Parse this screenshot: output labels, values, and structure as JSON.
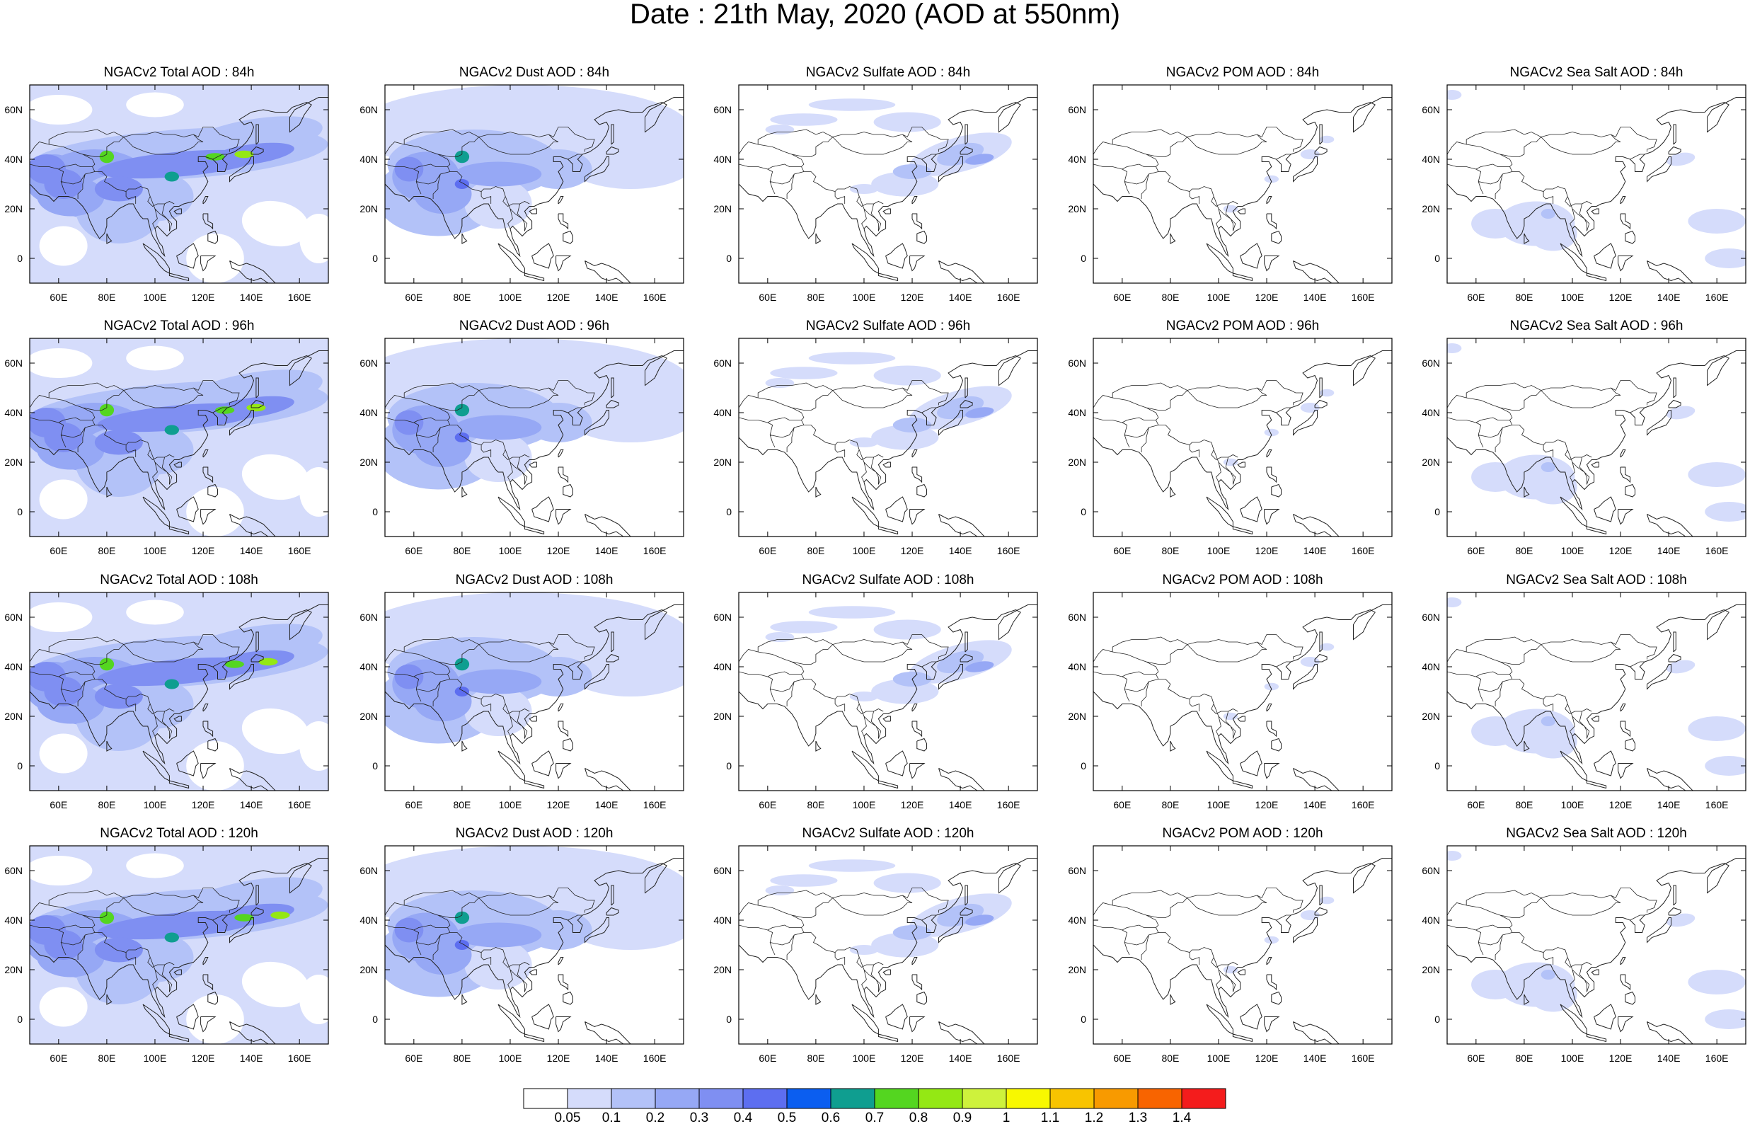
{
  "title": "Date : 21th May, 2020 (AOD at 550nm)",
  "columns": [
    {
      "key": "total",
      "label": "NGACv2 Total AOD"
    },
    {
      "key": "dust",
      "label": "NGACv2 Dust AOD"
    },
    {
      "key": "sulfate",
      "label": "NGACv2 Sulfate AOD"
    },
    {
      "key": "pom",
      "label": "NGACv2 POM AOD"
    },
    {
      "key": "seasalt",
      "label": "NGACv2 Sea Salt AOD"
    }
  ],
  "panel_titles": [
    [
      "NGACv2 Total AOD : 84h",
      "NGACv2 Dust AOD : 84h",
      "NGACv2 Sulfate AOD : 84h",
      "NGACv2 POM AOD : 84h",
      "NGACv2 Sea Salt AOD : 84h"
    ],
    [
      "NGACv2 Total AOD : 96h",
      "NGACv2 Dust AOD : 96h",
      "NGACv2 Sulfate AOD : 96h",
      "NGACv2 POM AOD : 96h",
      "NGACv2 Sea Salt AOD : 96h"
    ],
    [
      "NGACv2 Total AOD : 108h",
      "NGACv2 Dust AOD : 108h",
      "NGACv2 Sulfate AOD : 108h",
      "NGACv2 POM AOD : 108h",
      "NGACv2 Sea Salt AOD : 108h"
    ],
    [
      "NGACv2 Total AOD : 120h",
      "NGACv2 Dust AOD : 120h",
      "NGACv2 Sulfate AOD : 120h",
      "NGACv2 POM AOD : 120h",
      "NGACv2 Sea Salt  AOD : 120h"
    ]
  ],
  "x_ticks": [
    "60E",
    "80E",
    "100E",
    "120E",
    "140E",
    "160E"
  ],
  "x_tick_values": [
    60,
    80,
    100,
    120,
    140,
    160
  ],
  "y_ticks": [
    "60N",
    "40N",
    "20N",
    "0"
  ],
  "y_tick_values": [
    60,
    40,
    20,
    0
  ],
  "lon_range": [
    48,
    172
  ],
  "lat_range": [
    -10,
    70
  ],
  "colorbar": {
    "labels": [
      "0.05",
      "0.1",
      "0.2",
      "0.3",
      "0.4",
      "0.5",
      "0.6",
      "0.7",
      "0.8",
      "0.9",
      "1",
      "1.1",
      "1.2",
      "1.3",
      "1.4"
    ],
    "colors": [
      "#ffffff",
      "#d5dcfb",
      "#b3c2f8",
      "#96a8f5",
      "#7f8ff2",
      "#5d6ef0",
      "#0b5ef0",
      "#0f9e90",
      "#54d620",
      "#94e814",
      "#cef23c",
      "#f8f800",
      "#f8c400",
      "#f89a00",
      "#f86400",
      "#f41c1c"
    ]
  },
  "chart_data": {
    "type": "heatmap",
    "title": "Date : 21th May, 2020 (AOD at 550nm)",
    "forecast_hours": [
      "84h",
      "96h",
      "108h",
      "120h"
    ],
    "variables": [
      "Total AOD",
      "Dust AOD",
      "Sulfate AOD",
      "POM AOD",
      "Sea Salt AOD"
    ],
    "lon_range": [
      48,
      172
    ],
    "lat_range": [
      -10,
      70
    ],
    "colorbar_levels": [
      0.05,
      0.1,
      0.2,
      0.3,
      0.4,
      0.5,
      0.6,
      0.7,
      0.8,
      0.9,
      1,
      1.1,
      1.2,
      1.3,
      1.4
    ]
  }
}
